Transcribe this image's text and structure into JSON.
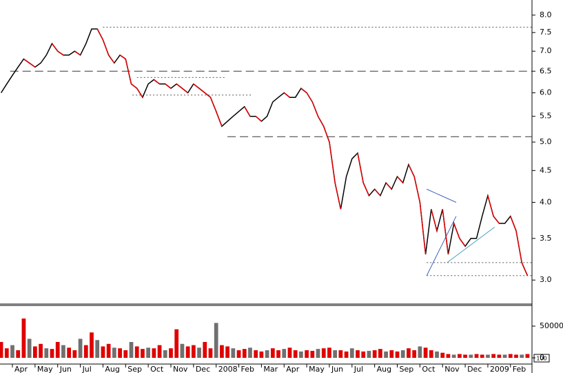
{
  "chart_data": [
    {
      "type": "line",
      "color": "#000000",
      "log_scale": true,
      "xlim": [
        0.452,
        23.95
      ],
      "ylim": [
        2.745,
        8.46
      ],
      "xticks": [
        {
          "value": 1,
          "label": "Apr"
        },
        {
          "value": 2,
          "label": "May"
        },
        {
          "value": 3,
          "label": "Jun"
        },
        {
          "value": 4,
          "label": "Jul"
        },
        {
          "value": 5,
          "label": "Aug"
        },
        {
          "value": 6,
          "label": "Sep"
        },
        {
          "value": 7,
          "label": "Oct"
        },
        {
          "value": 8,
          "label": "Nov"
        },
        {
          "value": 9,
          "label": "Dec"
        },
        {
          "value": 10,
          "label": "2008"
        },
        {
          "value": 11,
          "label": "Feb"
        },
        {
          "value": 12,
          "label": "Mar"
        },
        {
          "value": 13,
          "label": "Apr"
        },
        {
          "value": 14,
          "label": "May"
        },
        {
          "value": 15,
          "label": "Jun"
        },
        {
          "value": 16,
          "label": "Jul"
        },
        {
          "value": 17,
          "label": "Aug"
        },
        {
          "value": 18,
          "label": "Sep"
        },
        {
          "value": 19,
          "label": "Oct"
        },
        {
          "value": 20,
          "label": "Nov"
        },
        {
          "value": 21,
          "label": "Dec"
        },
        {
          "value": 22,
          "label": "2009"
        },
        {
          "value": 23,
          "label": "Feb"
        }
      ],
      "yticks": [
        {
          "value": 3,
          "label": "3.0"
        },
        3.5,
        {
          "value": 4,
          "label": "4.0"
        },
        4.5,
        {
          "value": 5,
          "label": "5.0"
        },
        5.5,
        {
          "value": 6,
          "label": "6.0"
        },
        6.5,
        {
          "value": 7,
          "label": "7.0"
        },
        7.5,
        {
          "value": 8,
          "label": "8.0"
        }
      ],
      "x": [
        0.5,
        0.75,
        1,
        1.25,
        1.5,
        1.75,
        2,
        2.25,
        2.5,
        2.75,
        3,
        3.25,
        3.5,
        3.75,
        4,
        4.25,
        4.5,
        4.75,
        5,
        5.25,
        5.5,
        5.75,
        6,
        6.25,
        6.5,
        6.75,
        7,
        7.25,
        7.5,
        7.75,
        8,
        8.25,
        8.5,
        8.75,
        9,
        9.25,
        9.5,
        9.75,
        10,
        10.25,
        10.5,
        10.75,
        11,
        11.25,
        11.5,
        11.75,
        12,
        12.25,
        12.5,
        12.75,
        13,
        13.25,
        13.5,
        13.75,
        14,
        14.25,
        14.5,
        14.75,
        15,
        15.25,
        15.5,
        15.75,
        16,
        16.25,
        16.5,
        16.75,
        17,
        17.25,
        17.5,
        17.75,
        18,
        18.25,
        18.5,
        18.75,
        19,
        19.25,
        19.5,
        19.75,
        20,
        20.25,
        20.5,
        20.75,
        21,
        21.25,
        21.5,
        21.75,
        22,
        22.25,
        22.5,
        22.75,
        23,
        23.25,
        23.5,
        23.75
      ],
      "values": [
        6.0,
        6.2,
        6.4,
        6.6,
        6.8,
        6.7,
        6.6,
        6.7,
        6.9,
        7.2,
        7.0,
        6.9,
        6.9,
        7.0,
        6.9,
        7.2,
        7.6,
        7.6,
        7.3,
        6.9,
        6.7,
        6.9,
        6.8,
        6.2,
        6.1,
        5.9,
        6.2,
        6.3,
        6.2,
        6.2,
        6.1,
        6.2,
        6.1,
        6.0,
        6.2,
        6.1,
        6.0,
        5.9,
        5.6,
        5.3,
        5.4,
        5.5,
        5.6,
        5.7,
        5.5,
        5.5,
        5.4,
        5.5,
        5.8,
        5.9,
        6.0,
        5.9,
        5.9,
        6.1,
        6.0,
        5.8,
        5.5,
        5.3,
        5.0,
        4.3,
        3.9,
        4.4,
        4.7,
        4.8,
        4.3,
        4.1,
        4.2,
        4.1,
        4.3,
        4.2,
        4.4,
        4.3,
        4.6,
        4.4,
        4.0,
        3.3,
        3.9,
        3.6,
        3.9,
        3.3,
        3.7,
        3.5,
        3.4,
        3.5,
        3.5,
        3.8,
        4.1,
        3.8,
        3.7,
        3.7,
        3.8,
        3.6,
        3.2,
        3.05
      ],
      "levels": [
        {
          "value": 7.65,
          "from": 5,
          "to": 23.95,
          "style": "dotted"
        },
        {
          "value": 6.5,
          "from": 0.9,
          "to": 23.95,
          "style": "dashed"
        },
        {
          "value": 5.1,
          "from": 10.5,
          "to": 23.95,
          "style": "dashed"
        },
        {
          "value": 6.35,
          "from": 6.5,
          "to": 10.4,
          "style": "dotted"
        },
        {
          "value": 5.95,
          "from": 6.3,
          "to": 11.6,
          "style": "dotted"
        },
        {
          "value": 3.2,
          "from": 19.3,
          "to": 23.95,
          "style": "dotted"
        },
        {
          "value": 3.05,
          "from": 19.3,
          "to": 23.95,
          "style": "dotted"
        }
      ],
      "trendlines": [
        {
          "x": [
            19.3,
            20.6
          ],
          "y": [
            3.05,
            3.8
          ],
          "color": "#4060c0"
        },
        {
          "x": [
            19.3,
            20.6
          ],
          "y": [
            4.2,
            4.0
          ],
          "color": "#4060c0"
        },
        {
          "x": [
            20.2,
            22.3
          ],
          "y": [
            3.2,
            3.65
          ],
          "color": "#40a0c0"
        }
      ]
    },
    {
      "type": "bar",
      "color": "#e00000",
      "alt_color": "#707070",
      "ylim": [
        0,
        82600
      ],
      "yticks": [
        0,
        50000
      ],
      "scale_note": "100",
      "x": [
        0.5,
        0.75,
        1,
        1.25,
        1.5,
        1.75,
        2,
        2.25,
        2.5,
        2.75,
        3,
        3.25,
        3.5,
        3.75,
        4,
        4.25,
        4.5,
        4.75,
        5,
        5.25,
        5.5,
        5.75,
        6,
        6.25,
        6.5,
        6.75,
        7,
        7.25,
        7.5,
        7.75,
        8,
        8.25,
        8.5,
        8.75,
        9,
        9.25,
        9.5,
        9.75,
        10,
        10.25,
        10.5,
        10.75,
        11,
        11.25,
        11.5,
        11.75,
        12,
        12.25,
        12.5,
        12.75,
        13,
        13.25,
        13.5,
        13.75,
        14,
        14.25,
        14.5,
        14.75,
        15,
        15.25,
        15.5,
        15.75,
        16,
        16.25,
        16.5,
        16.75,
        17,
        17.25,
        17.5,
        17.75,
        18,
        18.25,
        18.5,
        18.75,
        19,
        19.25,
        19.5,
        19.75,
        20,
        20.25,
        20.5,
        20.75,
        21,
        21.25,
        21.5,
        21.75,
        22,
        22.25,
        22.5,
        22.75,
        23,
        23.25,
        23.5,
        23.75
      ],
      "values": [
        25000,
        15000,
        20000,
        12000,
        62000,
        30000,
        18000,
        22000,
        15000,
        14000,
        25000,
        20000,
        16000,
        12000,
        30000,
        20000,
        40000,
        28000,
        18000,
        22000,
        16000,
        15000,
        12000,
        25000,
        18000,
        14000,
        16000,
        15000,
        20000,
        12000,
        15000,
        45000,
        22000,
        18000,
        20000,
        16000,
        25000,
        15000,
        55000,
        20000,
        18000,
        15000,
        12000,
        14000,
        16000,
        12000,
        10000,
        12000,
        15000,
        12000,
        14000,
        16000,
        12000,
        10000,
        12000,
        11000,
        14000,
        15000,
        16000,
        12000,
        12000,
        10000,
        15000,
        12000,
        10000,
        11000,
        12000,
        14000,
        10000,
        12000,
        10000,
        12000,
        15000,
        12000,
        18000,
        16000,
        12000,
        10000,
        8000,
        6000,
        5000,
        6000,
        5000,
        5000,
        6000,
        5000,
        5000,
        6000,
        5000,
        5000,
        6000,
        5000,
        5000,
        6000
      ]
    }
  ]
}
